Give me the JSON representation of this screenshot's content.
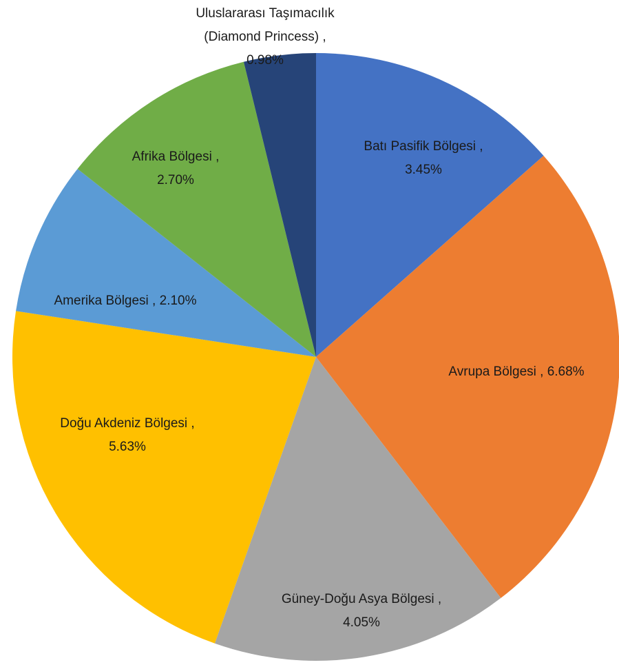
{
  "chart_data": {
    "type": "pie",
    "categories": [
      "Batı Pasifik Bölgesi ,",
      "Avrupa Bölgesi ,",
      "Güney-Doğu Asya Bölgesi ,",
      "Doğu Akdeniz Bölgesi ,",
      "Amerika Bölgesi ,",
      "Afrika Bölgesi ,",
      "Uluslararası Taşımacılık (Diamond Princess) ,"
    ],
    "values": [
      3.45,
      6.68,
      4.05,
      5.63,
      2.1,
      2.7,
      0.98
    ],
    "value_labels": [
      "3.45%",
      "6.68%",
      "4.05%",
      "5.63%",
      "2.10%",
      "2.70%",
      "0.98%"
    ],
    "colors": [
      "#4472c4",
      "#ed7d31",
      "#a5a5a5",
      "#ffc000",
      "#5b9bd5",
      "#70ad47",
      "#264478"
    ]
  }
}
